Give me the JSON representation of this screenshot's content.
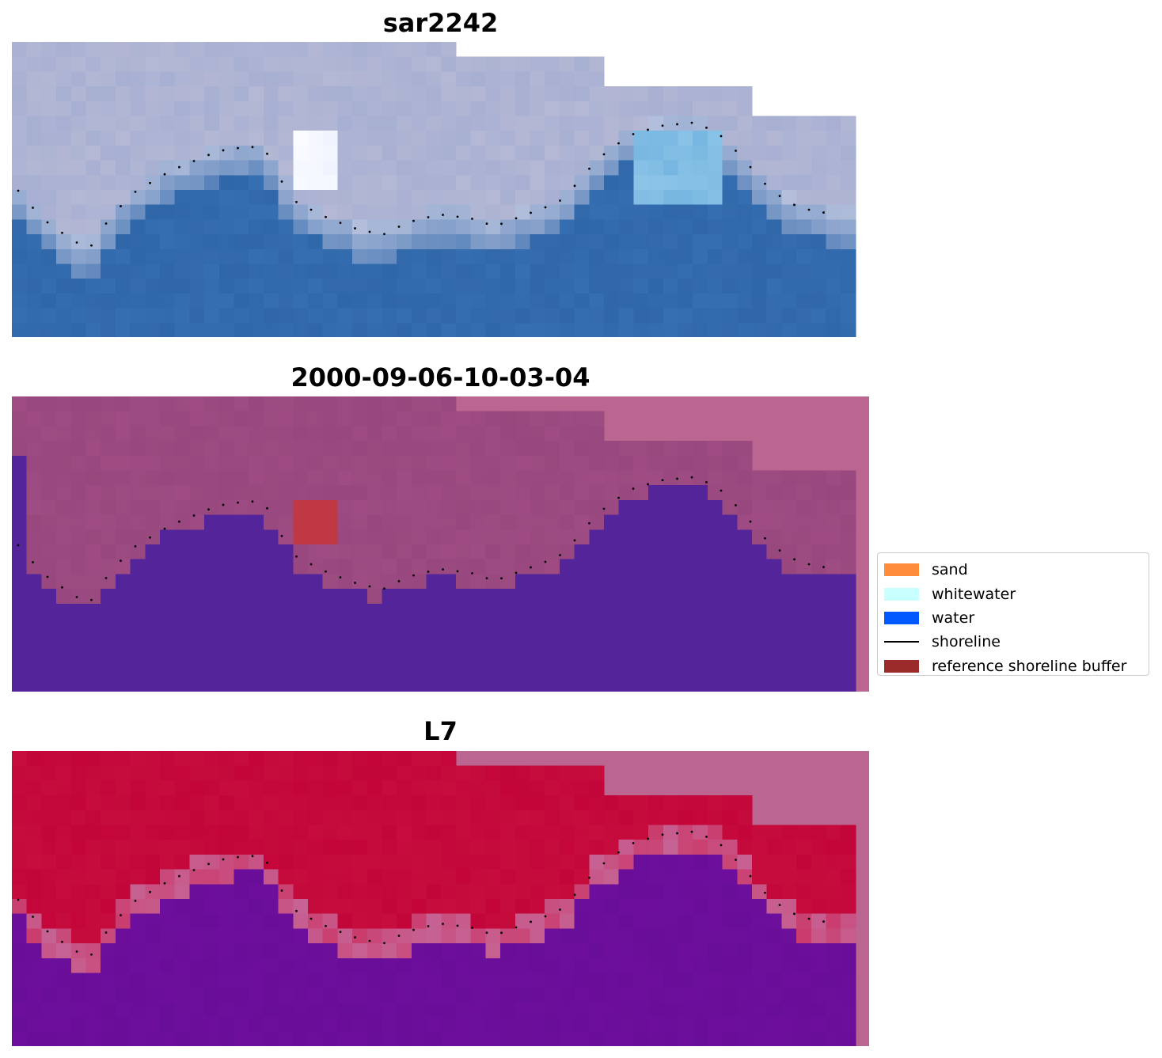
{
  "panels": [
    {
      "title": "sar2242",
      "kind": "rgb"
    },
    {
      "title": "2000-09-06-10-03-04",
      "kind": "classified"
    },
    {
      "title": "L7",
      "kind": "mndwi"
    }
  ],
  "legend": {
    "items": [
      {
        "label": "sand",
        "color": "#ff8c3c",
        "kind": "patch"
      },
      {
        "label": "whitewater",
        "color": "#c8ffff",
        "kind": "patch"
      },
      {
        "label": "water",
        "color": "#005aff",
        "kind": "patch"
      },
      {
        "label": "shoreline",
        "color": "#000000",
        "kind": "line"
      },
      {
        "label": "reference shoreline buffer",
        "color": "#9b2b2b",
        "kind": "patch"
      }
    ]
  },
  "colors": {
    "background_mask": "#bb6691",
    "rgb_land": "#b4b8d4",
    "rgb_water": "#2f67a8",
    "rgb_whitewater": "#eef3ff",
    "class_land": "#98487e",
    "class_water": "#54249a",
    "class_buffer": "#bf3843",
    "mndwi_land": "#c3053a",
    "mndwi_water": "#690e99",
    "mndwi_edge": "#c66394",
    "shoreline": "#000000"
  }
}
